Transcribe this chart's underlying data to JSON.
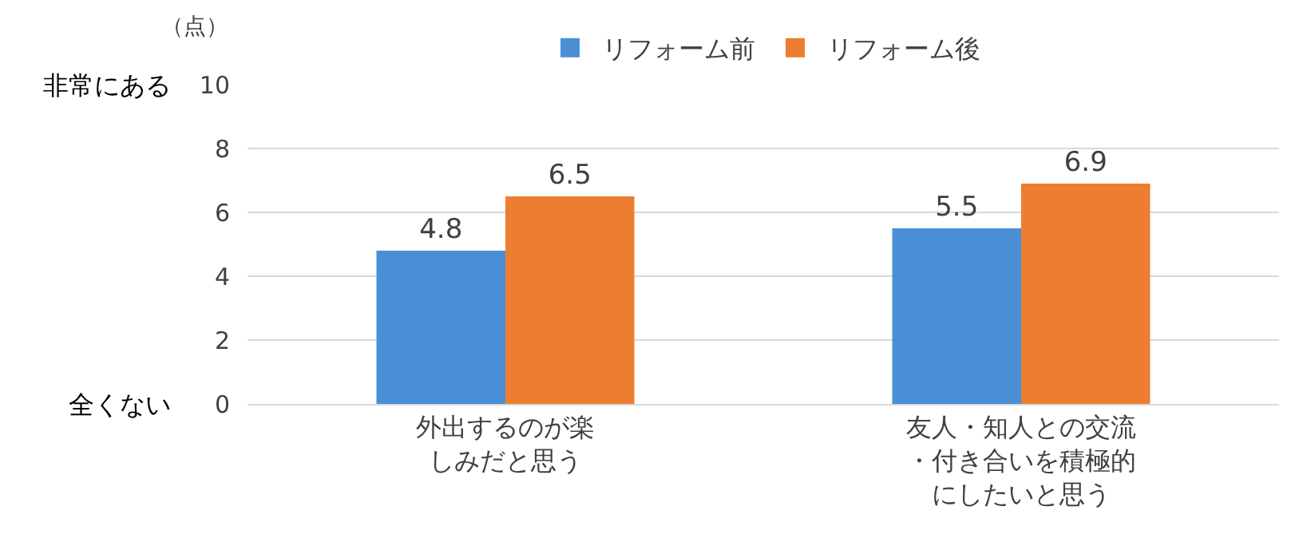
{
  "chart_data": {
    "type": "bar",
    "ylabel": "（点）",
    "categories": [
      "外出するのが楽しみだと思う",
      "友人・知人との交流・付き合いを積極的にしたいと思う"
    ],
    "series": [
      {
        "name": "リフォーム前",
        "color": "#4a8fd6",
        "values": [
          4.8,
          5.5
        ]
      },
      {
        "name": "リフォーム後",
        "color": "#ed7d31",
        "values": [
          6.5,
          6.9
        ]
      }
    ],
    "ylim": [
      0,
      10
    ],
    "yticks": [
      0,
      2,
      4,
      6,
      8,
      10
    ],
    "grid": "y",
    "legend": "top",
    "data_labels": true,
    "annotations": [
      "非常にある",
      "全くない"
    ]
  }
}
